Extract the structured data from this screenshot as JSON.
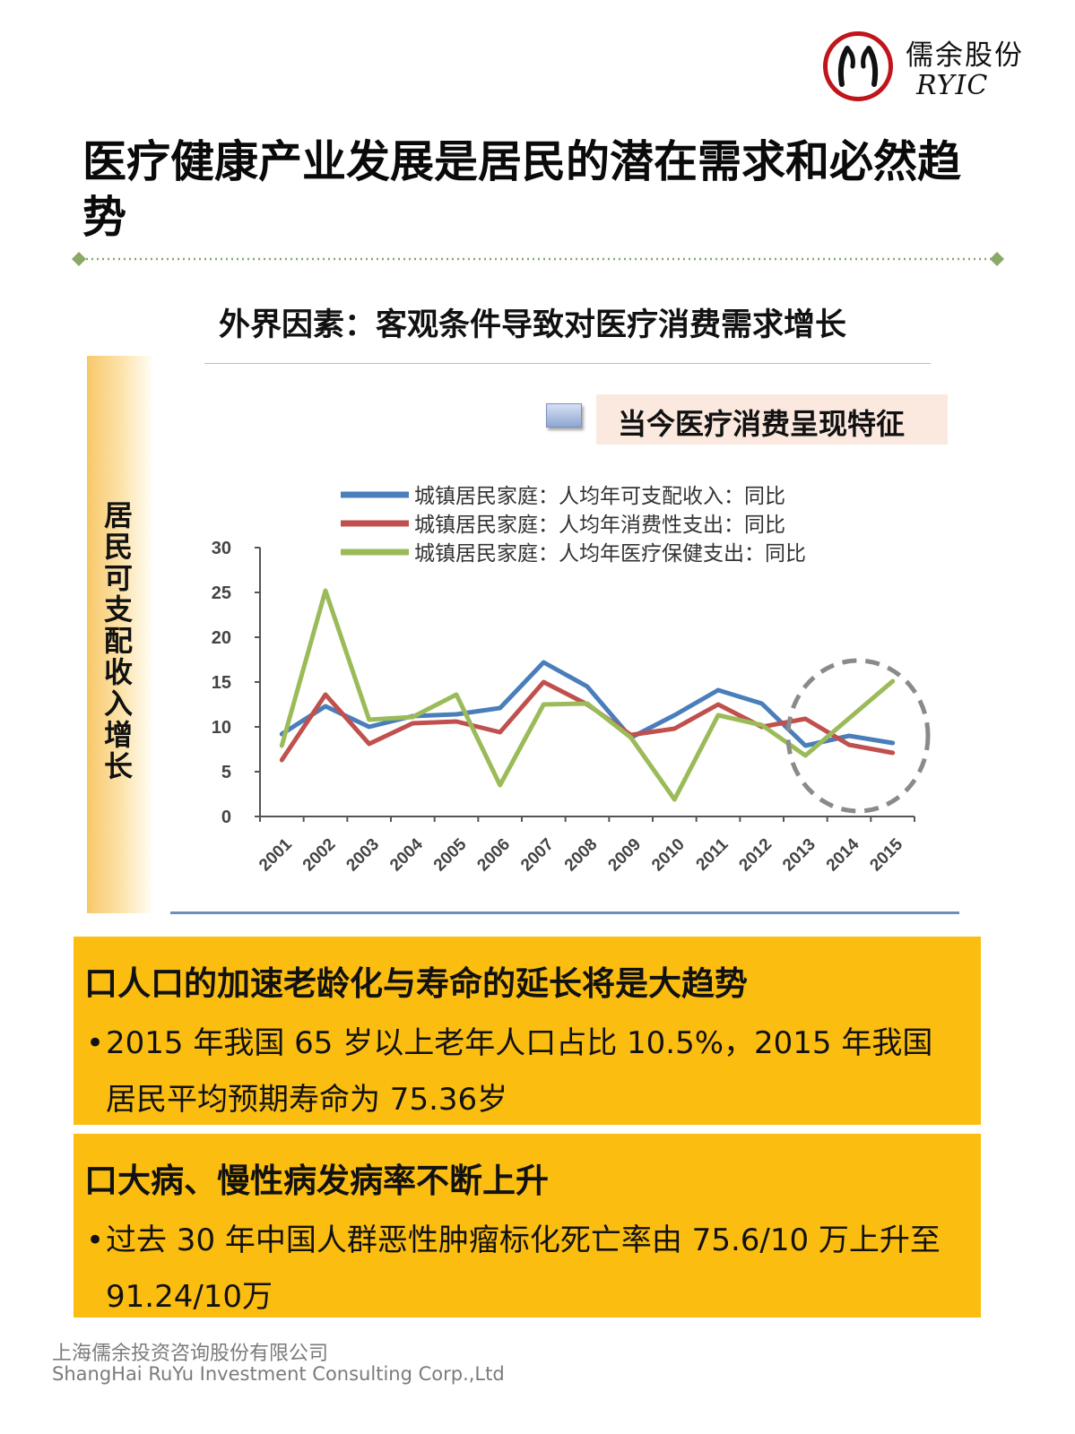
{
  "logo": {
    "cn": "儒余股份",
    "en": "RYIC"
  },
  "title": "医疗健康产业发展是居民的潜在需求和必然趋势",
  "subtitle": "外界因素：客观条件导致对医疗消费需求增长",
  "side_label": "居民可支配收入增长",
  "feature_label": "当今医疗消费呈现特征",
  "chart_data": {
    "type": "line",
    "categories": [
      "2001",
      "2002",
      "2003",
      "2004",
      "2005",
      "2006",
      "2007",
      "2008",
      "2009",
      "2010",
      "2011",
      "2012",
      "2013",
      "2014",
      "2015"
    ],
    "ylim": [
      0,
      30
    ],
    "yticks": [
      "0",
      "5",
      "10",
      "15",
      "20",
      "25",
      "30"
    ],
    "series": [
      {
        "name": "城镇居民家庭：人均年可支配收入：同比",
        "color": "#4a7ebb",
        "values": [
          9.2,
          12.3,
          10.0,
          11.2,
          11.4,
          12.1,
          17.2,
          14.5,
          8.8,
          11.3,
          14.1,
          12.6,
          7.9,
          9.0,
          8.2
        ]
      },
      {
        "name": "城镇居民家庭：人均年消费性支出：同比",
        "color": "#c0504d",
        "values": [
          6.3,
          13.6,
          8.1,
          10.4,
          10.6,
          9.4,
          15.0,
          12.5,
          9.1,
          9.8,
          12.5,
          10.0,
          10.9,
          8.0,
          7.1
        ]
      },
      {
        "name": "城镇居民家庭：人均年医疗保健支出：同比",
        "color": "#9bbb59",
        "values": [
          7.9,
          25.2,
          10.8,
          11.1,
          13.6,
          3.5,
          12.5,
          12.6,
          8.8,
          1.9,
          11.3,
          10.2,
          6.8,
          null,
          15.1
        ]
      }
    ],
    "highlight": "dashed circle around 2013–2015",
    "grid": false,
    "legend_position": "top"
  },
  "panels": [
    {
      "heading": "口人口的加速老龄化与寿命的延长将是大趋势",
      "bullet": "2015 年我国 65 岁以上老年人口占比 10.5%，2015 年我国居民平均预期寿命为 75.36岁"
    },
    {
      "heading": "口大病、慢性病发病率不断上升",
      "bullet": "过去 30 年中国人群恶性肿瘤标化死亡率由 75.6/10 万上升至 91.24/10万"
    }
  ],
  "footer": {
    "cn": "上海儒余投资咨询股份有限公司",
    "en": "ShangHai RuYu Investment Consulting Corp.,Ltd"
  },
  "colors": {
    "accent_yellow": "#fbbd10",
    "divider_green": "#8aa866",
    "logo_red": "#c0151b"
  }
}
